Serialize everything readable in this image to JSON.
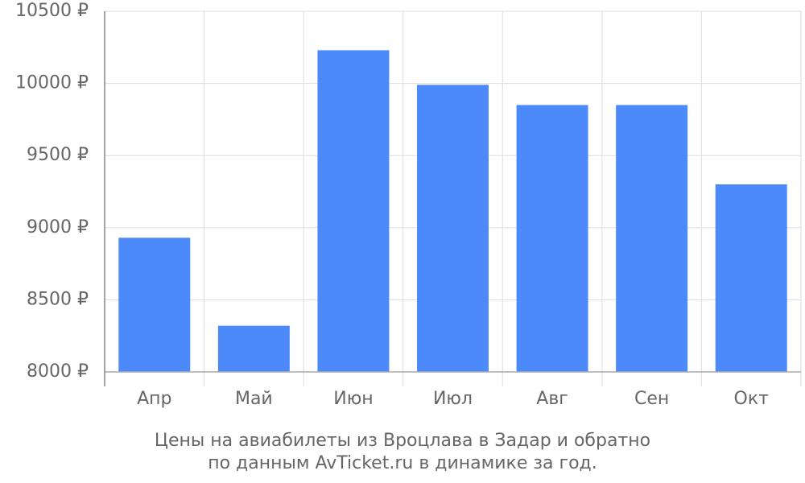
{
  "chart_data": {
    "type": "bar",
    "title": [
      "Цены на авиабилеты из Вроцлава в Задар и обратно",
      "по данным AvTicket.ru в динамике за год."
    ],
    "categories": [
      "Апр",
      "Май",
      "Июн",
      "Июл",
      "Авг",
      "Сен",
      "Окт"
    ],
    "values": [
      8930,
      8320,
      10230,
      9990,
      9850,
      9850,
      9300
    ],
    "color": "#4d8af9",
    "ylim": [
      8000,
      10500
    ],
    "yticks": [
      {
        "value": 8000,
        "label": "8000 ₽"
      },
      {
        "value": 8500,
        "label": "8500 ₽"
      },
      {
        "value": 9000,
        "label": "9000 ₽"
      },
      {
        "value": 9500,
        "label": "9500 ₽"
      },
      {
        "value": 10000,
        "label": "10000 ₽"
      },
      {
        "value": 10500,
        "label": "10500 ₽"
      }
    ],
    "grid": true
  }
}
